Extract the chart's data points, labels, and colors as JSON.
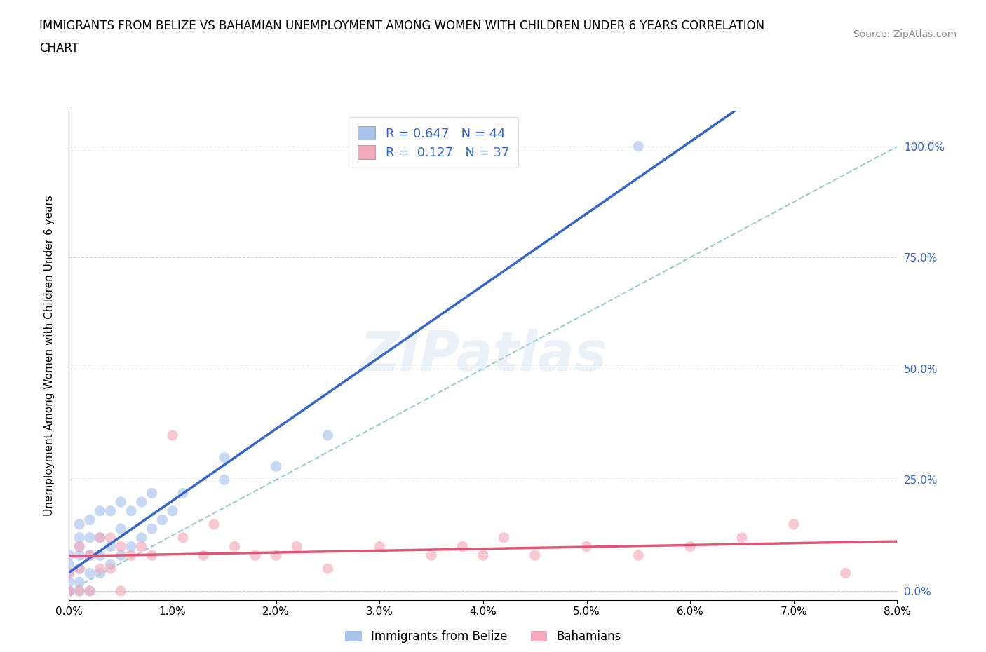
{
  "title_line1": "IMMIGRANTS FROM BELIZE VS BAHAMIAN UNEMPLOYMENT AMONG WOMEN WITH CHILDREN UNDER 6 YEARS CORRELATION",
  "title_line2": "CHART",
  "source": "Source: ZipAtlas.com",
  "ylabel": "Unemployment Among Women with Children Under 6 years",
  "xlim": [
    0.0,
    0.08
  ],
  "ylim": [
    -0.02,
    1.08
  ],
  "yticks": [
    0.0,
    0.25,
    0.5,
    0.75,
    1.0
  ],
  "ytick_labels": [
    "0.0%",
    "25.0%",
    "50.0%",
    "75.0%",
    "100.0%"
  ],
  "xticks": [
    0.0,
    0.01,
    0.02,
    0.03,
    0.04,
    0.05,
    0.06,
    0.07,
    0.08
  ],
  "xtick_labels": [
    "0.0%",
    "1.0%",
    "2.0%",
    "3.0%",
    "4.0%",
    "5.0%",
    "6.0%",
    "7.0%",
    "8.0%"
  ],
  "series1_label": "Immigrants from Belize",
  "series2_label": "Bahamians",
  "series1_R": "0.647",
  "series1_N": "44",
  "series2_R": "0.127",
  "series2_N": "37",
  "series1_color": "#a8c4ed",
  "series2_color": "#f4aabb",
  "series1_line_color": "#3366cc",
  "series2_line_color": "#e05575",
  "diagonal_line_color": "#99cccc",
  "tick_label_color": "#3366cc",
  "belize_x": [
    0.0,
    0.0,
    0.0,
    0.0,
    0.0,
    0.0,
    0.0,
    0.0,
    0.001,
    0.001,
    0.001,
    0.001,
    0.001,
    0.001,
    0.001,
    0.002,
    0.002,
    0.002,
    0.002,
    0.002,
    0.003,
    0.003,
    0.003,
    0.003,
    0.004,
    0.004,
    0.004,
    0.005,
    0.005,
    0.005,
    0.006,
    0.006,
    0.007,
    0.007,
    0.008,
    0.008,
    0.009,
    0.01,
    0.011,
    0.015,
    0.015,
    0.02,
    0.025,
    0.055
  ],
  "belize_y": [
    0.0,
    0.0,
    0.0,
    0.0,
    0.02,
    0.04,
    0.06,
    0.08,
    0.0,
    0.02,
    0.05,
    0.08,
    0.1,
    0.12,
    0.15,
    0.0,
    0.04,
    0.08,
    0.12,
    0.16,
    0.04,
    0.08,
    0.12,
    0.18,
    0.06,
    0.1,
    0.18,
    0.08,
    0.14,
    0.2,
    0.1,
    0.18,
    0.12,
    0.2,
    0.14,
    0.22,
    0.16,
    0.18,
    0.22,
    0.25,
    0.3,
    0.28,
    0.35,
    1.0
  ],
  "bahamian_x": [
    0.0,
    0.0,
    0.001,
    0.001,
    0.001,
    0.002,
    0.002,
    0.003,
    0.003,
    0.004,
    0.004,
    0.005,
    0.005,
    0.006,
    0.007,
    0.008,
    0.01,
    0.011,
    0.013,
    0.014,
    0.016,
    0.018,
    0.02,
    0.022,
    0.025,
    0.03,
    0.035,
    0.038,
    0.04,
    0.042,
    0.045,
    0.05,
    0.055,
    0.06,
    0.065,
    0.07,
    0.075
  ],
  "bahamian_y": [
    0.0,
    0.04,
    0.0,
    0.05,
    0.1,
    0.0,
    0.08,
    0.05,
    0.12,
    0.05,
    0.12,
    0.0,
    0.1,
    0.08,
    0.1,
    0.08,
    0.35,
    0.12,
    0.08,
    0.15,
    0.1,
    0.08,
    0.08,
    0.1,
    0.05,
    0.1,
    0.08,
    0.1,
    0.08,
    0.12,
    0.08,
    0.1,
    0.08,
    0.1,
    0.12,
    0.15,
    0.04
  ],
  "background_color": "#ffffff",
  "grid_color": "#cccccc"
}
